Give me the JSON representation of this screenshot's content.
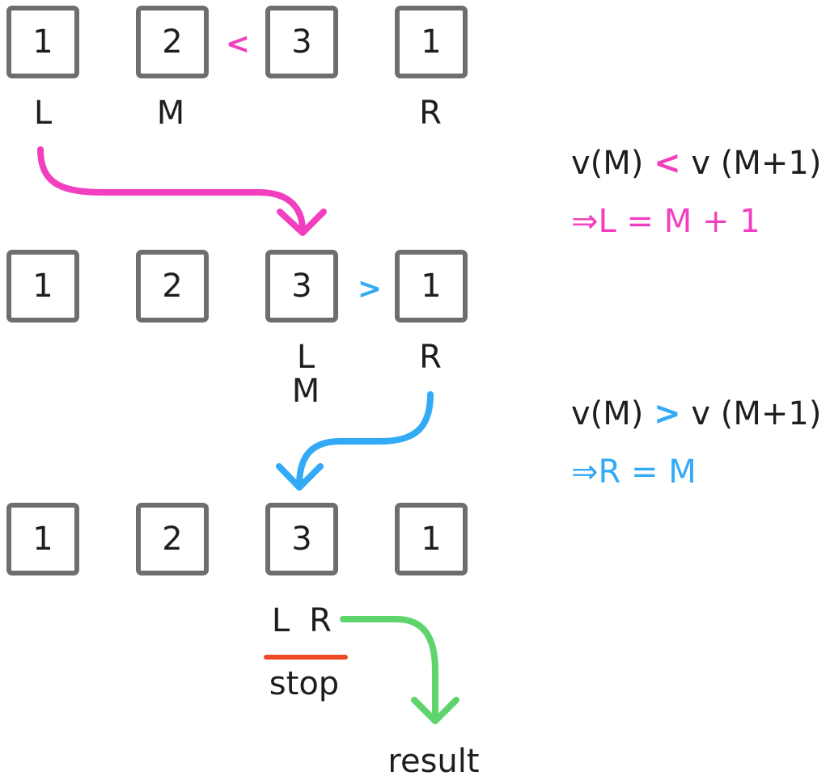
{
  "colors": {
    "pink": "#f23fbf",
    "blue": "#33aaf5",
    "green": "#5fd46c",
    "red": "#ef4a26",
    "box_border": "#6e6e6e"
  },
  "rows": [
    {
      "values": [
        "1",
        "2",
        "3",
        "1"
      ],
      "comparison": "<",
      "labels": {
        "col0": "L",
        "col1": "M",
        "col3": "R"
      }
    },
    {
      "values": [
        "1",
        "2",
        "3",
        "1"
      ],
      "comparison": ">",
      "labels": {
        "col2_top": "L",
        "col2_bottom": "M",
        "col3": "R"
      }
    },
    {
      "values": [
        "1",
        "2",
        "3",
        "1"
      ],
      "labels": {
        "l": "L",
        "r": "R"
      },
      "stop": "stop",
      "result": "result"
    }
  ],
  "rules": [
    {
      "left": "v(M)",
      "op": "<",
      "right": "v (M+1)",
      "implication": "⇒L = M + 1"
    },
    {
      "left": "v(M)",
      "op": ">",
      "right": "v (M+1)",
      "implication": "⇒R = M"
    }
  ]
}
